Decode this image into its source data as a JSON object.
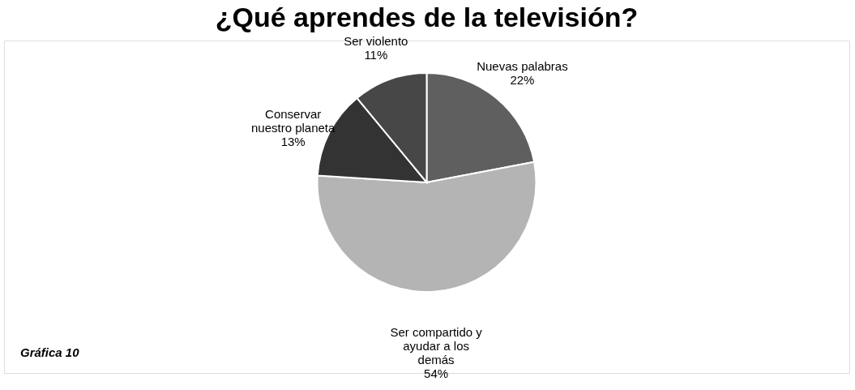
{
  "chart_data": {
    "type": "pie",
    "title": "¿Qué aprendes de la televisión?",
    "categories": [
      "Nuevas palabras",
      "Ser compartido y ayudar a los demás",
      "Conservar nuestro planeta",
      "Ser violento"
    ],
    "values": [
      22,
      54,
      13,
      11
    ],
    "colors": [
      "#5f5f5f",
      "#b4b4b4",
      "#333333",
      "#474747"
    ],
    "value_labels": [
      "22%",
      "54%",
      "13%",
      "11%"
    ],
    "annotations": [
      "Gráfica 10"
    ]
  }
}
